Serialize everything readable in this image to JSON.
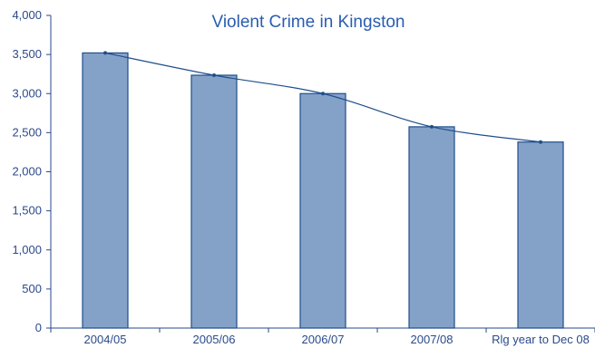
{
  "chart_data": {
    "type": "bar",
    "title": "Violent Crime in Kingston",
    "xlabel": "",
    "ylabel": "",
    "categories": [
      "2004/05",
      "2005/06",
      "2006/07",
      "2007/08",
      "Rlg year to Dec 08"
    ],
    "values": [
      3520,
      3235,
      3000,
      2575,
      2380
    ],
    "line_overlay": true,
    "ylim": [
      0,
      4000
    ],
    "yticks": [
      0,
      500,
      1000,
      1500,
      2000,
      2500,
      3000,
      3500,
      4000
    ],
    "ytick_labels": [
      "0",
      "500",
      "1,000",
      "1,500",
      "2,000",
      "2,500",
      "3,000",
      "3,500",
      "4,000"
    ],
    "grid": false,
    "legend": "none",
    "colors": {
      "bar_fill": "#84a2c8",
      "bar_stroke": "#1f4e8c",
      "line": "#1f4e8c",
      "axis": "#2a4a8a",
      "title": "#2a5db0"
    }
  }
}
